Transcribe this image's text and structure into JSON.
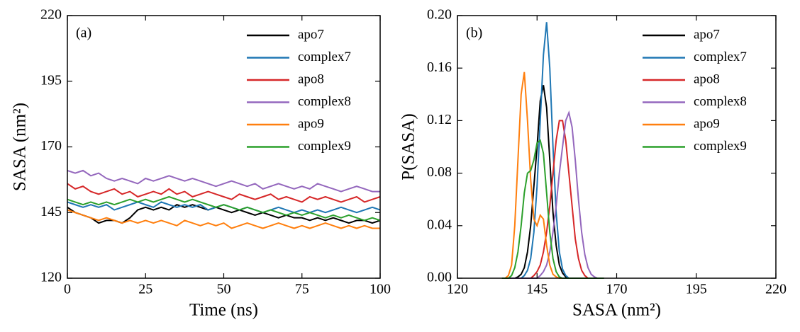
{
  "chart_data": [
    {
      "type": "line",
      "panel_label": "(a)",
      "xlabel": "Time (ns)",
      "ylabel": "SASA (nm²)",
      "xlim": [
        0,
        100
      ],
      "ylim": [
        120,
        220
      ],
      "xticks": [
        0,
        25,
        50,
        75,
        100
      ],
      "yticks": [
        120,
        145,
        170,
        195,
        220
      ],
      "legend": "upper right",
      "x": [
        0,
        2.5,
        5,
        7.5,
        10,
        12.5,
        15,
        17.5,
        20,
        22.5,
        25,
        27.5,
        30,
        32.5,
        35,
        37.5,
        40,
        42.5,
        45,
        47.5,
        50,
        52.5,
        55,
        57.5,
        60,
        62.5,
        65,
        67.5,
        70,
        72.5,
        75,
        77.5,
        80,
        82.5,
        85,
        87.5,
        90,
        92.5,
        95,
        97.5,
        100
      ],
      "series": [
        {
          "name": "apo7",
          "color": "#000000",
          "values": [
            147,
            145,
            144,
            143,
            141,
            142,
            142,
            141,
            143,
            146,
            147,
            146,
            147,
            146,
            148,
            147,
            148,
            147,
            146,
            147,
            146,
            145,
            146,
            145,
            144,
            145,
            144,
            143,
            144,
            143,
            143,
            142,
            143,
            142,
            143,
            142,
            141,
            142,
            142,
            141,
            142
          ]
        },
        {
          "name": "complex7",
          "color": "#1f77b4",
          "values": [
            149,
            148,
            147,
            148,
            147,
            148,
            146,
            147,
            148,
            149,
            148,
            147,
            149,
            148,
            147,
            148,
            147,
            148,
            146,
            147,
            148,
            147,
            146,
            147,
            146,
            145,
            146,
            147,
            146,
            145,
            146,
            145,
            146,
            145,
            146,
            147,
            146,
            145,
            146,
            147,
            146
          ]
        },
        {
          "name": "apo8",
          "color": "#d62728",
          "values": [
            156,
            154,
            155,
            153,
            152,
            153,
            154,
            152,
            153,
            151,
            152,
            153,
            152,
            154,
            152,
            153,
            151,
            152,
            153,
            152,
            151,
            150,
            152,
            151,
            150,
            151,
            152,
            150,
            151,
            150,
            149,
            151,
            150,
            151,
            150,
            149,
            150,
            151,
            149,
            150,
            151
          ]
        },
        {
          "name": "complex8",
          "color": "#9467bd",
          "values": [
            161,
            160,
            161,
            159,
            160,
            158,
            157,
            158,
            157,
            156,
            158,
            157,
            158,
            159,
            158,
            157,
            158,
            157,
            156,
            155,
            156,
            157,
            156,
            155,
            156,
            154,
            155,
            156,
            155,
            154,
            155,
            154,
            156,
            155,
            154,
            153,
            154,
            155,
            154,
            153,
            153
          ]
        },
        {
          "name": "apo9",
          "color": "#ff7f0e",
          "values": [
            146,
            145,
            144,
            143,
            142,
            143,
            142,
            141,
            142,
            141,
            142,
            141,
            142,
            141,
            140,
            142,
            141,
            140,
            141,
            140,
            141,
            139,
            140,
            141,
            140,
            139,
            140,
            141,
            140,
            139,
            140,
            139,
            140,
            141,
            140,
            139,
            140,
            139,
            140,
            139,
            139
          ]
        },
        {
          "name": "complex9",
          "color": "#2ca02c",
          "values": [
            150,
            149,
            148,
            149,
            148,
            149,
            148,
            149,
            150,
            149,
            150,
            149,
            150,
            151,
            150,
            149,
            150,
            149,
            148,
            147,
            148,
            147,
            146,
            147,
            146,
            145,
            146,
            145,
            144,
            145,
            144,
            145,
            144,
            143,
            144,
            143,
            144,
            143,
            142,
            143,
            142
          ]
        }
      ]
    },
    {
      "type": "line",
      "panel_label": "(b)",
      "xlabel": "SASA (nm²)",
      "ylabel": "P(SASA)",
      "xlim": [
        120,
        220
      ],
      "ylim": [
        0,
        0.2
      ],
      "xticks": [
        120,
        145,
        170,
        195,
        220
      ],
      "yticks": [
        {
          "value": 0,
          "label": "0.00"
        },
        0.04,
        0.08,
        0.12,
        0.16,
        {
          "value": 0.2,
          "label": "0.20"
        }
      ],
      "legend": "upper right",
      "x": [
        134,
        135,
        136,
        137,
        138,
        139,
        140,
        141,
        142,
        143,
        144,
        145,
        146,
        147,
        148,
        149,
        150,
        151,
        152,
        153,
        154,
        155,
        156,
        157,
        158,
        159,
        160,
        161,
        162,
        163,
        164,
        165,
        166
      ],
      "series": [
        {
          "name": "apo7",
          "color": "#000000",
          "values": [
            0,
            0,
            0,
            0,
            0,
            0.001,
            0.003,
            0.008,
            0.02,
            0.04,
            0.07,
            0.1,
            0.135,
            0.147,
            0.13,
            0.09,
            0.05,
            0.025,
            0.01,
            0.004,
            0.001,
            0,
            0,
            0,
            0,
            0,
            0,
            0,
            0,
            0,
            0,
            0,
            0
          ]
        },
        {
          "name": "complex7",
          "color": "#1f77b4",
          "values": [
            0,
            0,
            0,
            0,
            0,
            0,
            0,
            0.002,
            0.006,
            0.015,
            0.035,
            0.07,
            0.12,
            0.17,
            0.195,
            0.16,
            0.1,
            0.05,
            0.02,
            0.007,
            0.002,
            0,
            0,
            0,
            0,
            0,
            0,
            0,
            0,
            0,
            0,
            0,
            0
          ]
        },
        {
          "name": "apo8",
          "color": "#d62728",
          "values": [
            0,
            0,
            0,
            0,
            0,
            0,
            0,
            0,
            0,
            0,
            0.002,
            0.005,
            0.01,
            0.02,
            0.035,
            0.055,
            0.08,
            0.105,
            0.12,
            0.12,
            0.105,
            0.08,
            0.055,
            0.03,
            0.015,
            0.006,
            0.002,
            0,
            0,
            0,
            0,
            0,
            0
          ]
        },
        {
          "name": "complex8",
          "color": "#9467bd",
          "values": [
            0,
            0,
            0,
            0,
            0,
            0,
            0,
            0,
            0,
            0,
            0,
            0,
            0.002,
            0.005,
            0.01,
            0.02,
            0.035,
            0.055,
            0.08,
            0.1,
            0.12,
            0.126,
            0.115,
            0.09,
            0.06,
            0.035,
            0.018,
            0.008,
            0.003,
            0.001,
            0,
            0,
            0
          ]
        },
        {
          "name": "apo9",
          "color": "#ff7f0e",
          "values": [
            0,
            0,
            0.002,
            0.01,
            0.04,
            0.09,
            0.14,
            0.157,
            0.12,
            0.075,
            0.045,
            0.04,
            0.048,
            0.045,
            0.025,
            0.01,
            0.003,
            0.001,
            0,
            0,
            0,
            0,
            0,
            0,
            0,
            0,
            0,
            0,
            0,
            0,
            0,
            0,
            0
          ]
        },
        {
          "name": "complex9",
          "color": "#2ca02c",
          "values": [
            0,
            0,
            0,
            0.002,
            0.008,
            0.02,
            0.04,
            0.065,
            0.08,
            0.082,
            0.09,
            0.103,
            0.105,
            0.095,
            0.065,
            0.035,
            0.015,
            0.005,
            0.001,
            0,
            0,
            0,
            0,
            0,
            0,
            0,
            0,
            0,
            0,
            0,
            0,
            0,
            0
          ]
        }
      ]
    }
  ]
}
